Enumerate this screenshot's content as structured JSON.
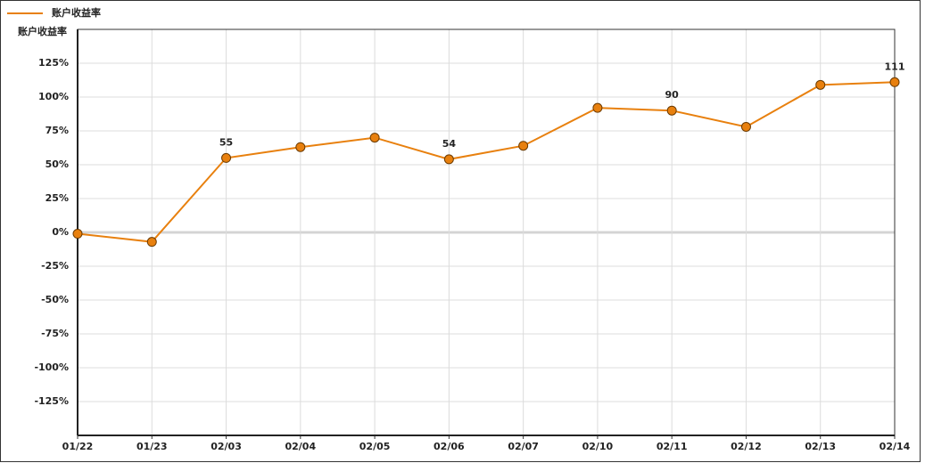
{
  "chart_data": {
    "type": "line",
    "legend_label": "账户收益率",
    "y_axis_title": "账户收益率",
    "categories": [
      "01/22",
      "01/23",
      "02/03",
      "02/04",
      "02/05",
      "02/06",
      "02/07",
      "02/10",
      "02/11",
      "02/12",
      "02/13",
      "02/14"
    ],
    "series": [
      {
        "name": "账户收益率",
        "color": "#e8800e",
        "values": [
          -1,
          -7,
          55,
          63,
          70,
          54,
          64,
          92,
          90,
          78,
          109,
          111
        ],
        "value_labels": [
          null,
          null,
          "55",
          null,
          null,
          "54",
          null,
          null,
          "90",
          null,
          null,
          "111"
        ]
      }
    ],
    "ylim": [
      -150,
      150
    ],
    "yticks": [
      {
        "value": -125,
        "label": "-125%"
      },
      {
        "value": -100,
        "label": "-100%"
      },
      {
        "value": -75,
        "label": "-75%"
      },
      {
        "value": -50,
        "label": "-50%"
      },
      {
        "value": -25,
        "label": "-25%"
      },
      {
        "value": 0,
        "label": "0%"
      },
      {
        "value": 25,
        "label": "25%"
      },
      {
        "value": 50,
        "label": "50%"
      },
      {
        "value": 75,
        "label": "75%"
      },
      {
        "value": 100,
        "label": "100%"
      },
      {
        "value": 125,
        "label": "125%"
      }
    ],
    "grid": true
  }
}
